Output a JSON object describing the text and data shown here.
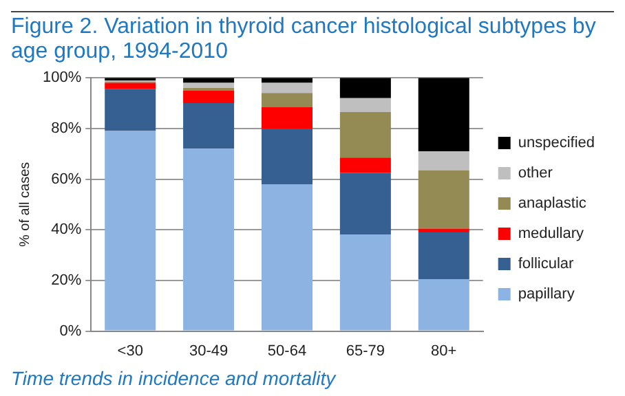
{
  "chart_data": {
    "type": "bar",
    "title": "Figure 2. Variation in thyroid cancer histological subtypes by age group, 1994-2010",
    "ylabel": "% of all cases",
    "categories": [
      "<30",
      "30-49",
      "50-64",
      "65-79",
      "80+"
    ],
    "stacked": true,
    "series": [
      {
        "name": "papillary",
        "color": "#8db3e2",
        "values": [
          79,
          72,
          58,
          38,
          20.5
        ]
      },
      {
        "name": "follicular",
        "color": "#366092",
        "values": [
          16.5,
          18,
          22,
          24.5,
          18.5
        ]
      },
      {
        "name": "medullary",
        "color": "#ff0000",
        "values": [
          2.5,
          5,
          8.5,
          6,
          1.5
        ]
      },
      {
        "name": "anaplastic",
        "color": "#948a54",
        "values": [
          0.5,
          1,
          5.5,
          18,
          23
        ]
      },
      {
        "name": "other",
        "color": "#bfbfbf",
        "values": [
          0.5,
          2,
          4,
          5.5,
          7.5
        ]
      },
      {
        "name": "unspecified",
        "color": "#000000",
        "values": [
          1,
          2,
          2,
          8,
          29
        ]
      }
    ],
    "ylim": [
      0,
      100
    ],
    "yticks": [
      {
        "value": 0,
        "label": "0%"
      },
      {
        "value": 20,
        "label": "20%"
      },
      {
        "value": 40,
        "label": "40%"
      },
      {
        "value": 60,
        "label": "60%"
      },
      {
        "value": 80,
        "label": "80%"
      },
      {
        "value": 100,
        "label": "100%"
      }
    ],
    "grid": "y",
    "legend": "right",
    "annotations": [
      "Time trends in incidence and mortality"
    ]
  }
}
